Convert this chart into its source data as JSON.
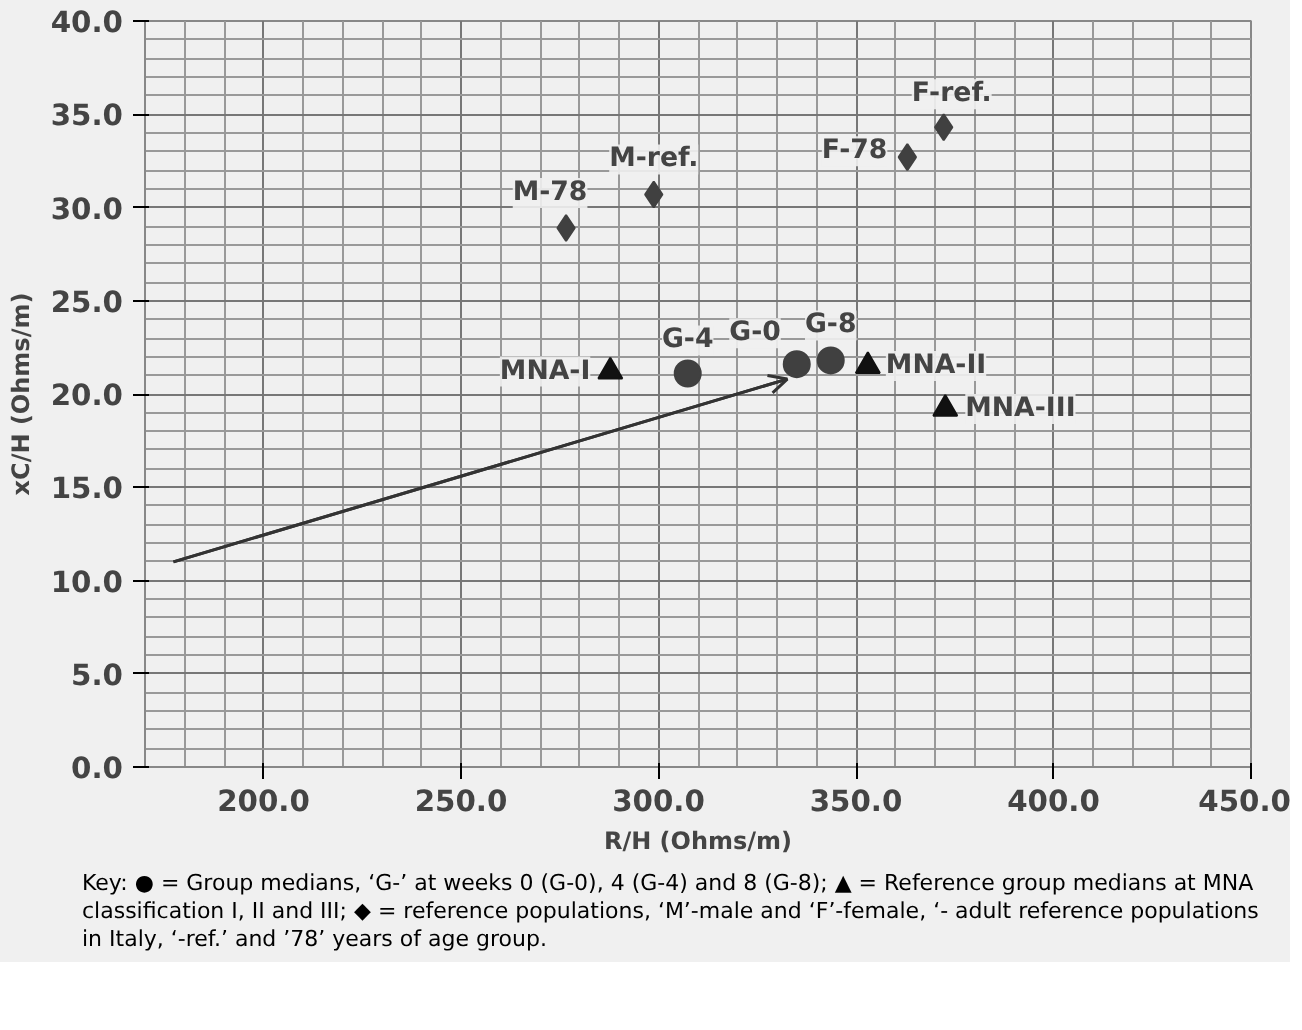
{
  "chart_data": {
    "type": "scatter",
    "xlabel": "R/H (Ohms/m)",
    "ylabel": "xC/H (Ohms/m)",
    "xlim": [
      170,
      450
    ],
    "ylim": [
      0,
      40
    ],
    "xticks": [
      {
        "value": 200,
        "label": "200.0"
      },
      {
        "value": 250,
        "label": "250.0"
      },
      {
        "value": 300,
        "label": "300.0"
      },
      {
        "value": 350,
        "label": "350.0"
      },
      {
        "value": 400,
        "label": "400.0"
      },
      {
        "value": 450,
        "label": "450.0"
      }
    ],
    "yticks": [
      {
        "value": 0,
        "label": "0.0"
      },
      {
        "value": 5,
        "label": "5.0"
      },
      {
        "value": 10,
        "label": "10.0"
      },
      {
        "value": 15,
        "label": "15.0"
      },
      {
        "value": 20,
        "label": "20.0"
      },
      {
        "value": 25,
        "label": "25.0"
      },
      {
        "value": 30,
        "label": "30.0"
      },
      {
        "value": 35,
        "label": "35.0"
      },
      {
        "value": 40,
        "label": "40.0"
      }
    ],
    "grid": true,
    "series": [
      {
        "marker": "circle",
        "color": "#404040",
        "x": [
          335,
          307.4,
          343.6
        ],
        "values": [
          21.6,
          21.1,
          21.8
        ]
      },
      {
        "marker": "triangle",
        "color": "#111111",
        "x": [
          287.8,
          353,
          372.6
        ],
        "values": [
          21.2,
          21.5,
          19.2
        ]
      },
      {
        "marker": "diamond",
        "color": "#404040",
        "x": [
          276.6,
          298.8,
          363,
          372.2
        ],
        "values": [
          28.9,
          30.7,
          32.7,
          34.3
        ]
      },
      {
        "type": "line",
        "marker": "none",
        "color": "#333333",
        "x": [
          177.2,
          332.6
        ],
        "values": [
          11.0,
          20.8
        ]
      }
    ],
    "annotations": [
      {
        "text": "G-0",
        "x": 335,
        "y": 21.6
      },
      {
        "text": "G-4",
        "x": 307.4,
        "y": 21.1
      },
      {
        "text": "G-8",
        "x": 343.6,
        "y": 21.8
      },
      {
        "text": "MNA-I",
        "x": 287.8,
        "y": 21.2
      },
      {
        "text": "MNA-II",
        "x": 353,
        "y": 21.5
      },
      {
        "text": "MNA-III",
        "x": 372.6,
        "y": 19.2
      },
      {
        "text": "M-78",
        "x": 276.6,
        "y": 28.9
      },
      {
        "text": "M-ref.",
        "x": 298.8,
        "y": 30.7
      },
      {
        "text": "F-78",
        "x": 363,
        "y": 32.7
      },
      {
        "text": "F-ref.",
        "x": 372.2,
        "y": 34.3
      },
      "Key: ● = Group medians, ‘G-’ at weeks 0 (G-0), 4 (G-4) and 8 (G-8); ▲ = Reference group medians at MNA classification I, II and III; ◆ = reference populations, ‘M’-male and ‘F’-female, ‘- adult reference populations in Italy, ‘-ref.’ and ’78’ years of age group."
    ]
  }
}
